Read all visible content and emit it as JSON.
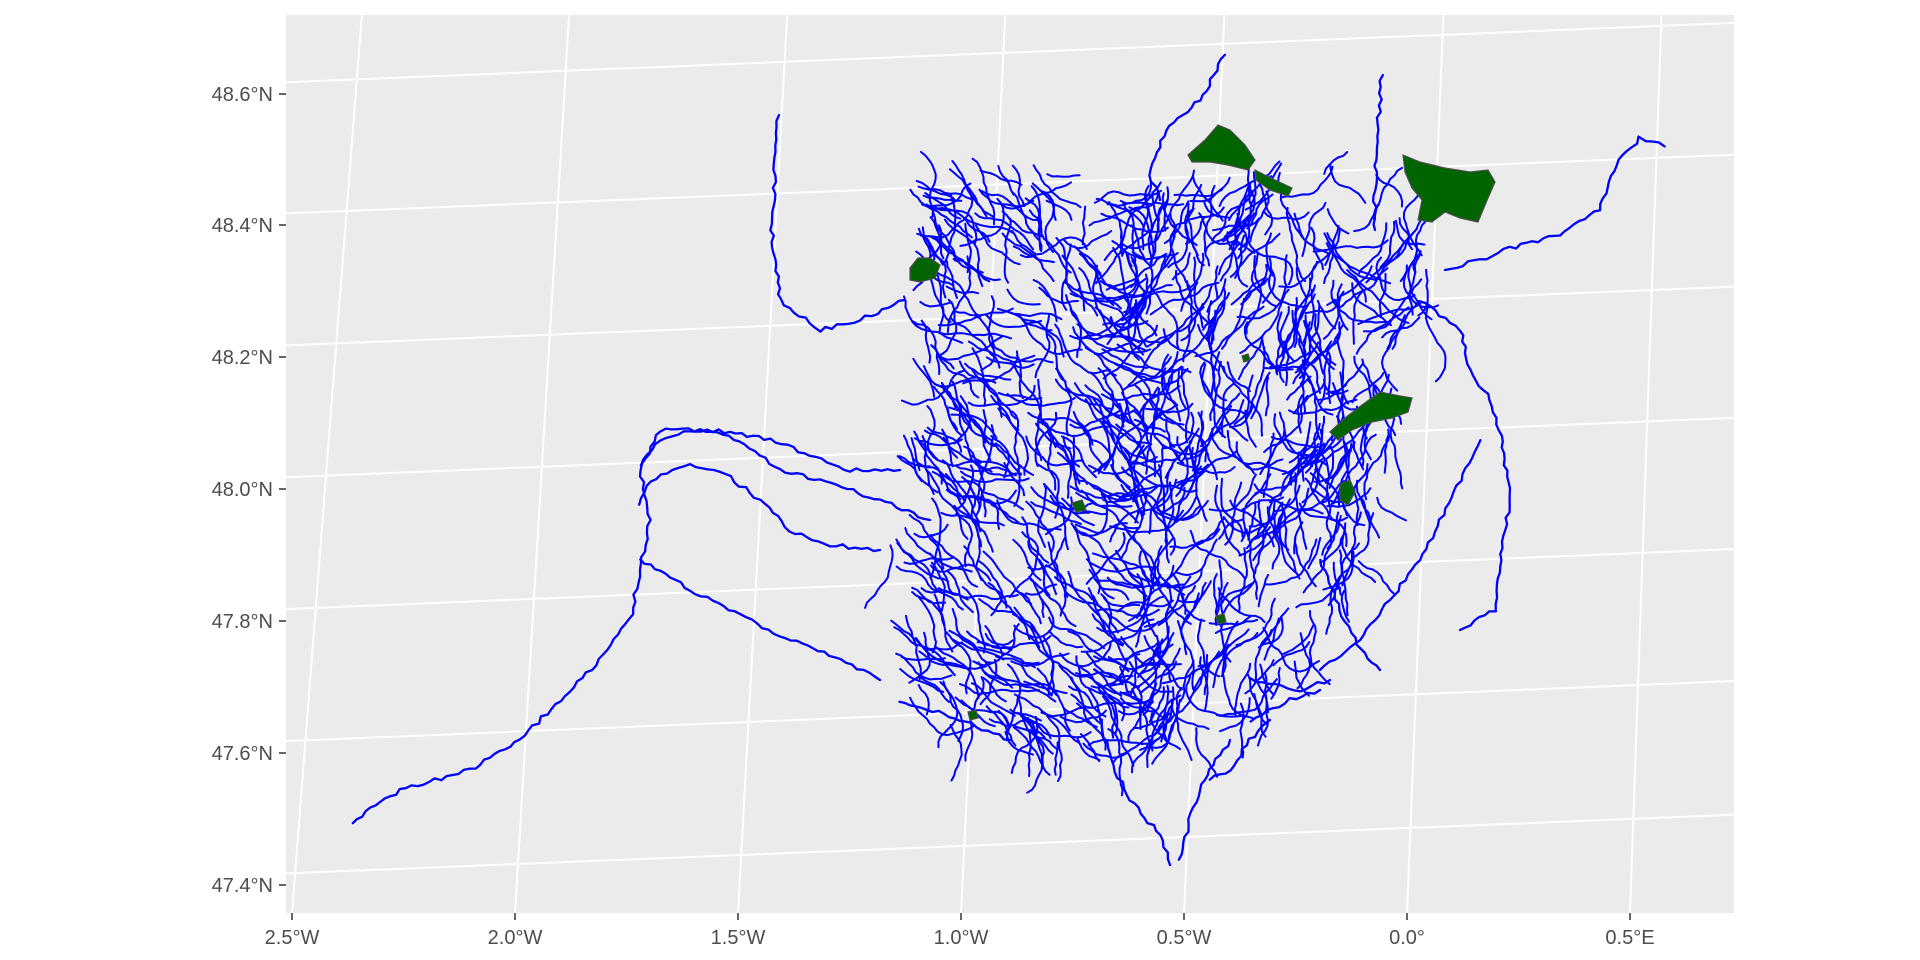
{
  "figure": {
    "type": "map",
    "projection": "conic",
    "colors": {
      "panel_background": "#ebebeb",
      "graticule": "#ffffff",
      "rivers": "#0000ff",
      "forests": "#006400",
      "forest_outline": "#4d4d4d",
      "tick_text": "#4d4d4d"
    }
  },
  "axes": {
    "x_ticks": [
      "2.5°W",
      "2.0°W",
      "1.5°W",
      "1.0°W",
      "0.5°W",
      "0.0°",
      "0.5°E"
    ],
    "y_ticks": [
      "47.4°N",
      "47.6°N",
      "47.8°N",
      "48.0°N",
      "48.2°N",
      "48.4°N",
      "48.6°N"
    ]
  },
  "layers": [
    {
      "name": "rivers",
      "geometry": "lines",
      "color": "#0000ff"
    },
    {
      "name": "forests",
      "geometry": "polygons",
      "color": "#006400"
    }
  ]
}
